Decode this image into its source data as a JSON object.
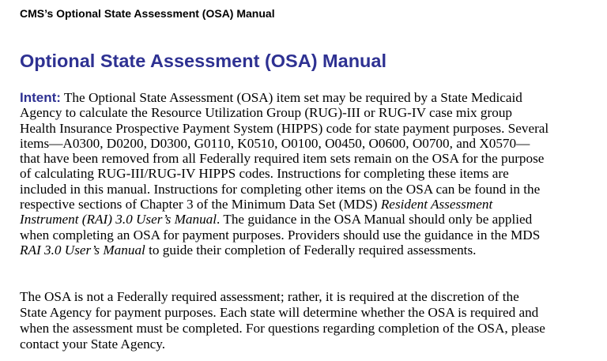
{
  "header": {
    "text": "CMS’s Optional State Assessment (OSA) Manual"
  },
  "title": "Optional State Assessment (OSA) Manual",
  "accent_color": "#2e3192",
  "paragraph1": {
    "label": "Intent:",
    "lines": [
      [
        {
          "t": " The Optional State Assessment (OSA) item set may be required by a State Medicaid"
        }
      ],
      [
        {
          "t": "Agency to calculate the Resource Utilization Group (RUG)-III or RUG-IV case mix group"
        }
      ],
      [
        {
          "t": "Health Insurance Prospective Payment System (HIPPS) code for state payment purposes. Several"
        }
      ],
      [
        {
          "t": "items—A0300, D0200, D0300, G0110, K0510, O0100, O0450, O0600, O0700, and X0570—"
        }
      ],
      [
        {
          "t": "that have been removed from all Federally required item sets remain on the OSA for the purpose"
        }
      ],
      [
        {
          "t": "of calculating RUG-III/RUG-IV HIPPS codes. Instructions for completing these items are"
        }
      ],
      [
        {
          "t": "included in this manual. Instructions for completing other items on the OSA can be found in the"
        }
      ],
      [
        {
          "t": "respective sections of Chapter 3 of the Minimum Data Set (MDS) "
        },
        {
          "t": "Resident Assessment",
          "i": true
        }
      ],
      [
        {
          "t": "Instrument (RAI) 3.0 User’s Manual",
          "i": true
        },
        {
          "t": ". The guidance in the OSA Manual should only be applied"
        }
      ],
      [
        {
          "t": "when completing an OSA for payment purposes. Providers should use the guidance in the MDS"
        }
      ],
      [
        {
          "t": "RAI 3.0 User’s Manual",
          "i": true
        },
        {
          "t": " to guide their completion of Federally required assessments."
        }
      ]
    ]
  },
  "paragraph2": {
    "lines": [
      "The OSA is not a Federally required assessment; rather, it is required at the discretion of the",
      "State Agency for payment purposes. Each state will determine whether the OSA is required and",
      "when the assessment must be completed. For questions regarding completion of the OSA, please",
      "contact your State Agency."
    ]
  }
}
